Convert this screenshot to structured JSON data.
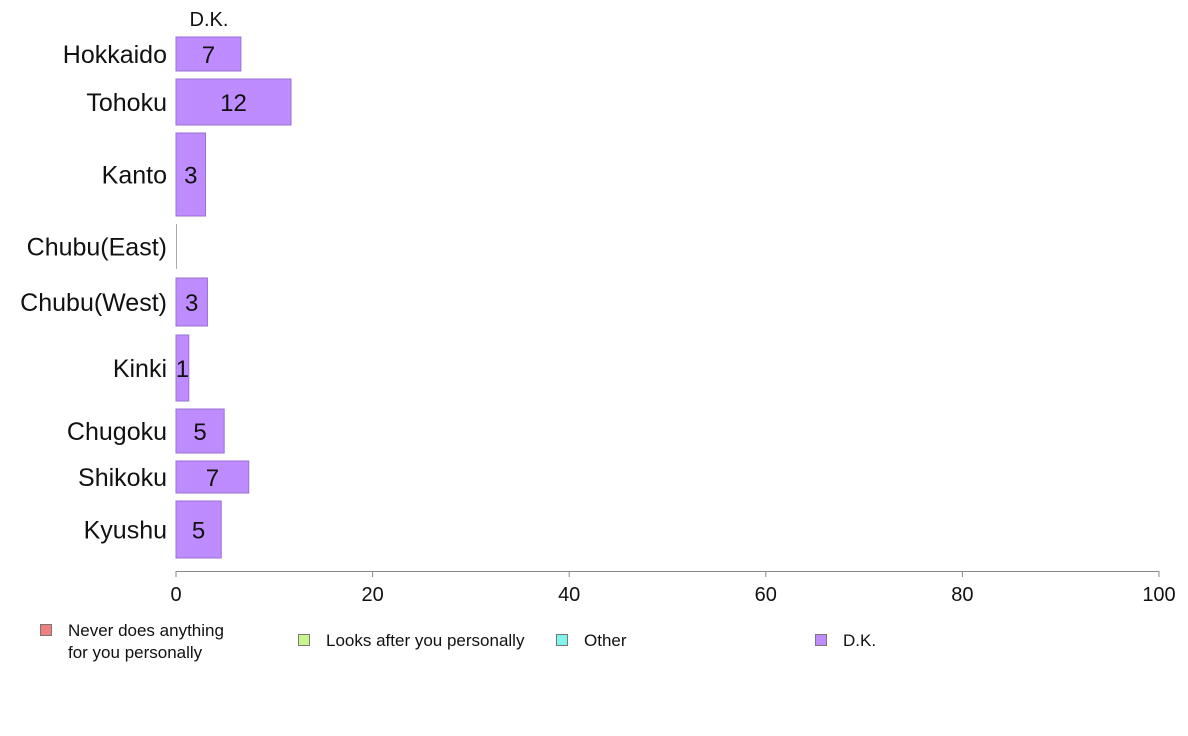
{
  "chart_data": {
    "type": "bar",
    "orientation": "horizontal",
    "stacked": true,
    "series_heading": "D.K.",
    "categories": [
      "Hokkaido",
      "Tohoku",
      "Kanto",
      "Chubu(East)",
      "Chubu(West)",
      "Kinki",
      "Chugoku",
      "Shikoku",
      "Kyushu"
    ],
    "series": [
      {
        "name": "Never does anything\nfor you personally",
        "color": "#f08080",
        "values": [
          0,
          0,
          0,
          0,
          0,
          0,
          0,
          0,
          0
        ]
      },
      {
        "name": "Looks after you personally",
        "color": "#c8f58a",
        "values": [
          0,
          0,
          0,
          0,
          0,
          0,
          0,
          0,
          0
        ]
      },
      {
        "name": "Other",
        "color": "#80f5f0",
        "values": [
          0,
          0,
          0,
          0,
          0,
          0,
          0,
          0,
          0
        ]
      },
      {
        "name": "D.K.",
        "color": "#bf8cff",
        "values": [
          6.6,
          11.7,
          3,
          0,
          3.2,
          1.3,
          4.9,
          7.4,
          4.6
        ]
      }
    ],
    "data_labels": [
      "7",
      "12",
      "3",
      "",
      "3",
      "1",
      "5",
      "7",
      "5"
    ],
    "xlim": [
      0,
      100
    ],
    "xticks": [
      "0",
      "20",
      "40",
      "60",
      "80",
      "100"
    ],
    "legend_position": "bottom",
    "grid": false
  }
}
